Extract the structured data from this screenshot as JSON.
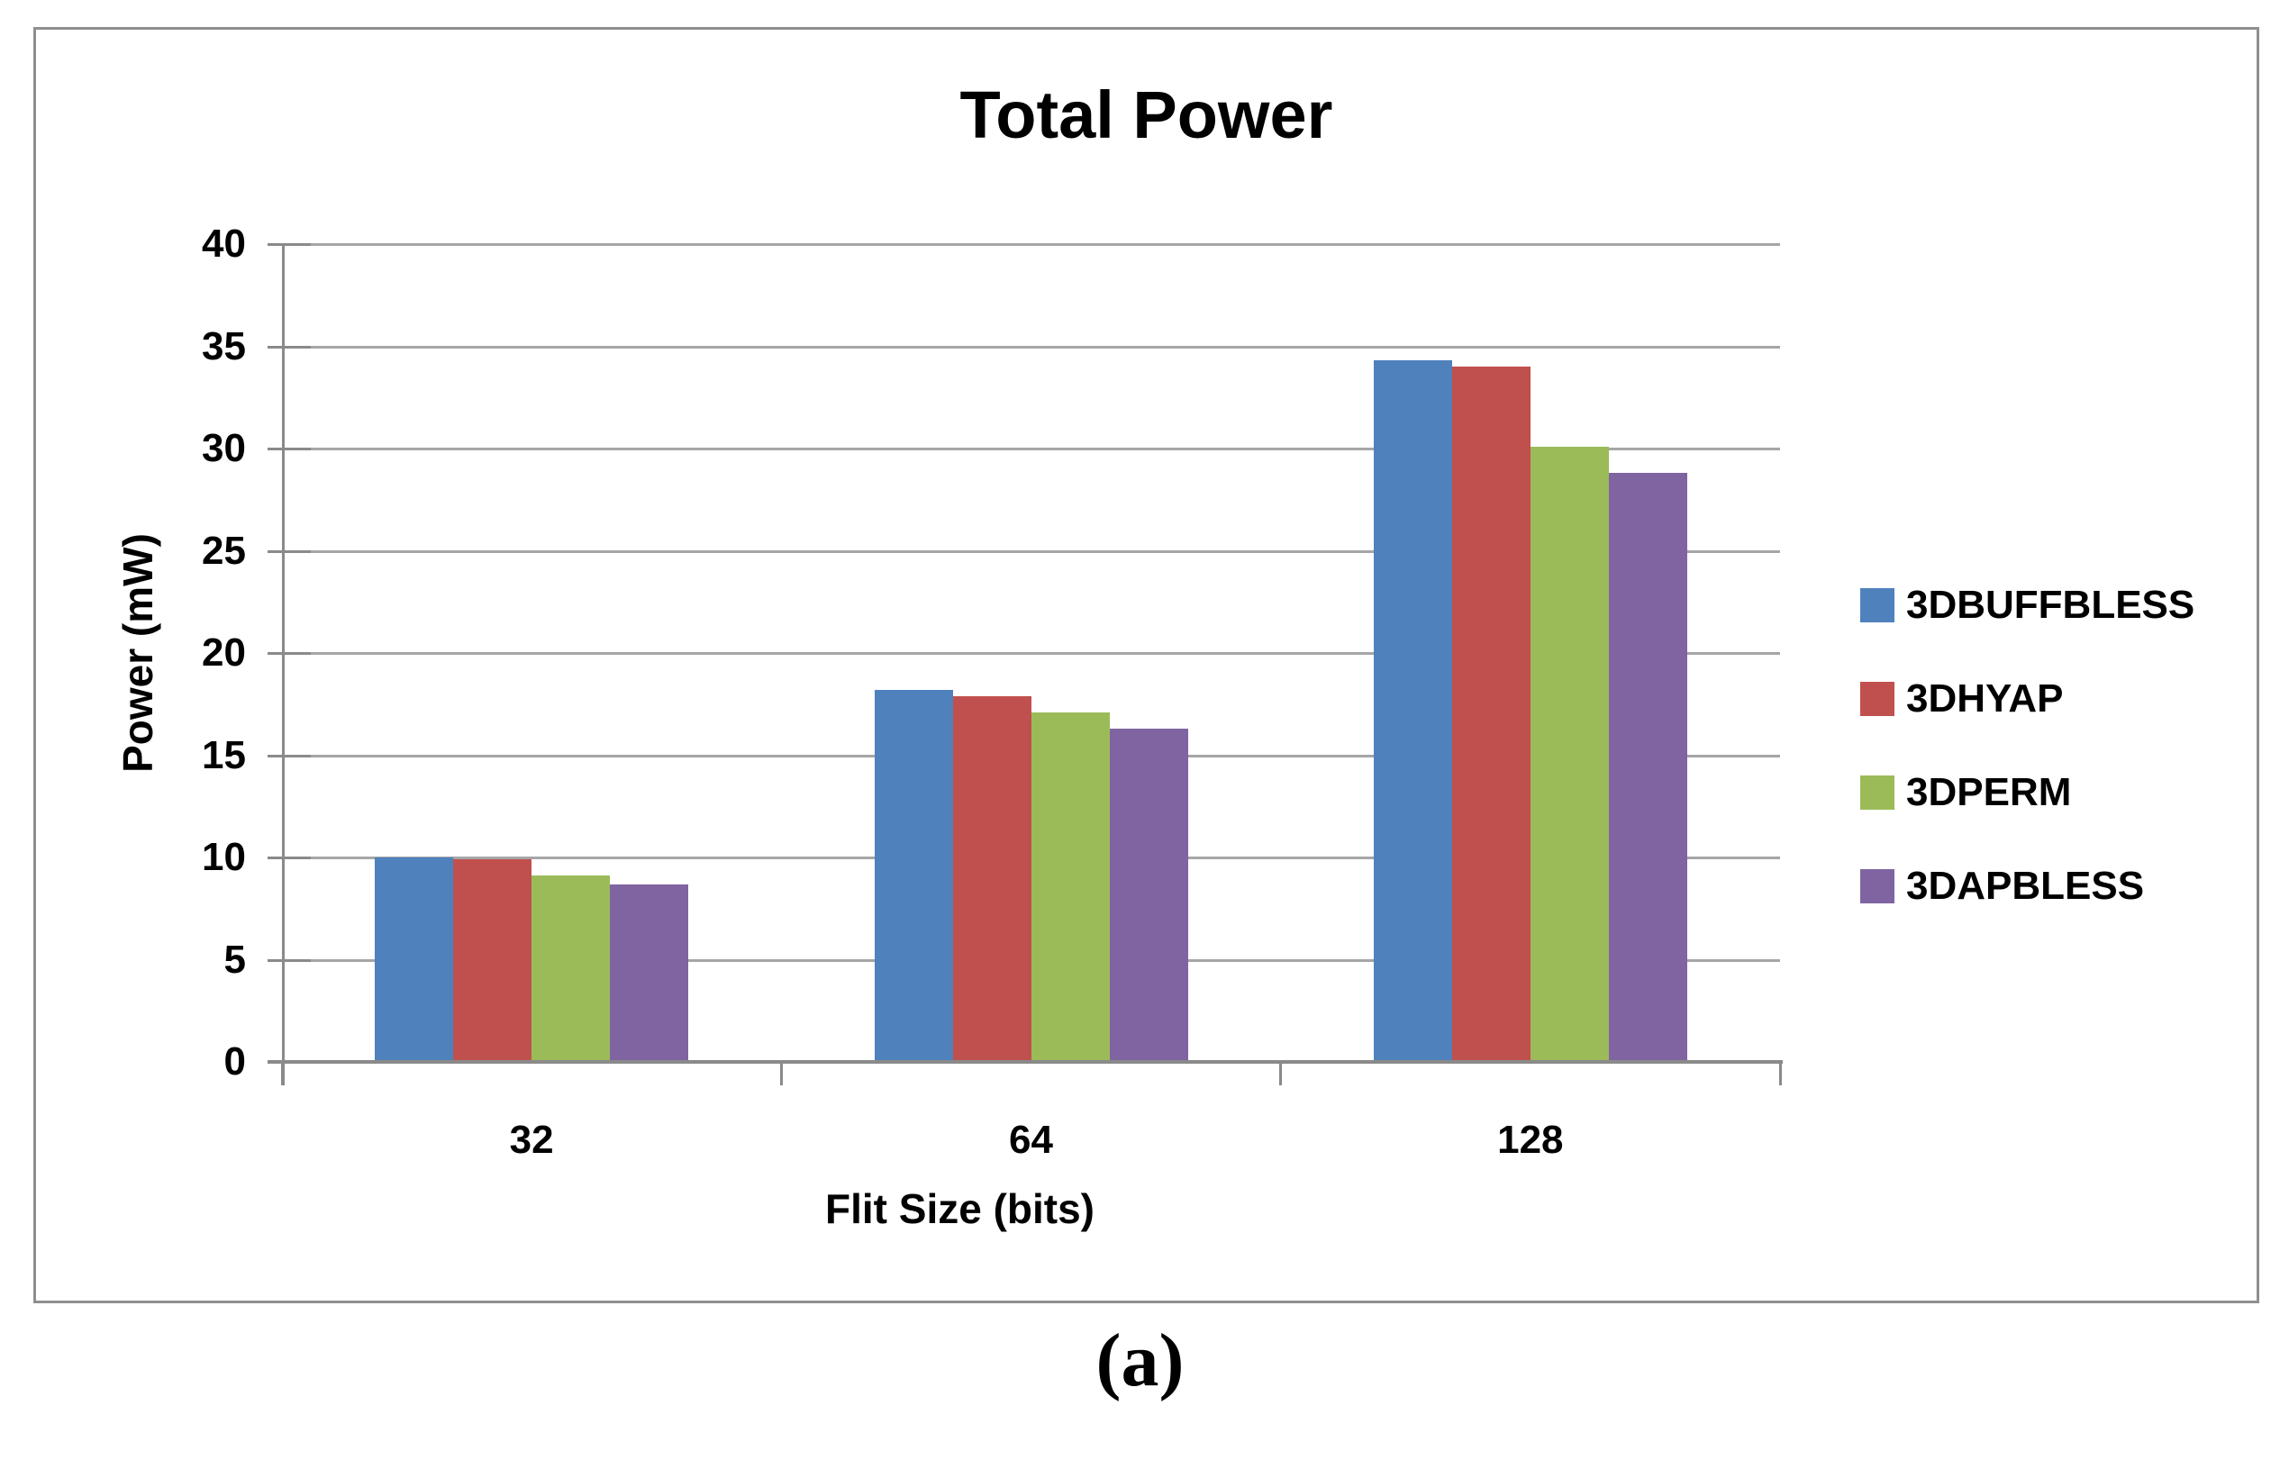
{
  "figure": {
    "caption": "(a)"
  },
  "chart_data": {
    "type": "bar",
    "title": "Total Power",
    "xlabel": "Flit Size (bits)",
    "ylabel": "Power (mW)",
    "ylim": [
      0,
      40
    ],
    "ytick_step": 5,
    "grid": true,
    "legend_position": "right",
    "categories": [
      "32",
      "64",
      "128"
    ],
    "series": [
      {
        "name": "3DBUFFBLESS",
        "color": "#4F81BD",
        "values": [
          10.0,
          18.2,
          34.3
        ]
      },
      {
        "name": "3DHYAP",
        "color": "#C0504D",
        "values": [
          9.9,
          17.9,
          34.0
        ]
      },
      {
        "name": "3DPERM",
        "color": "#9BBB59",
        "values": [
          9.1,
          17.1,
          30.1
        ]
      },
      {
        "name": "3DAPBLESS",
        "color": "#8064A2",
        "values": [
          8.7,
          16.3,
          28.8
        ]
      }
    ],
    "colors": {
      "gridline": "#A6A6A6",
      "axis": "#8A8A8A",
      "figure_border": "#8F8F8F",
      "text": "#000000",
      "background": "#FFFFFF"
    }
  }
}
